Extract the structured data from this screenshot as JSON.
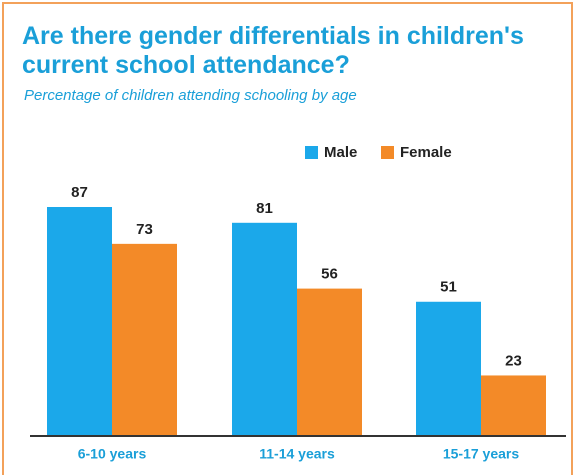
{
  "chart_data": {
    "type": "bar",
    "title": "Are there gender differentials in children's current school attendance?",
    "subtitle": "Percentage of children attending schooling by age",
    "categories": [
      "6-10 years",
      "11-14 years",
      "15-17 years"
    ],
    "series": [
      {
        "name": "Male",
        "color": "#1ba8ea",
        "values": [
          87,
          81,
          51
        ]
      },
      {
        "name": "Female",
        "color": "#f38a28",
        "values": [
          73,
          56,
          23
        ]
      }
    ],
    "legend": "top-right"
  }
}
